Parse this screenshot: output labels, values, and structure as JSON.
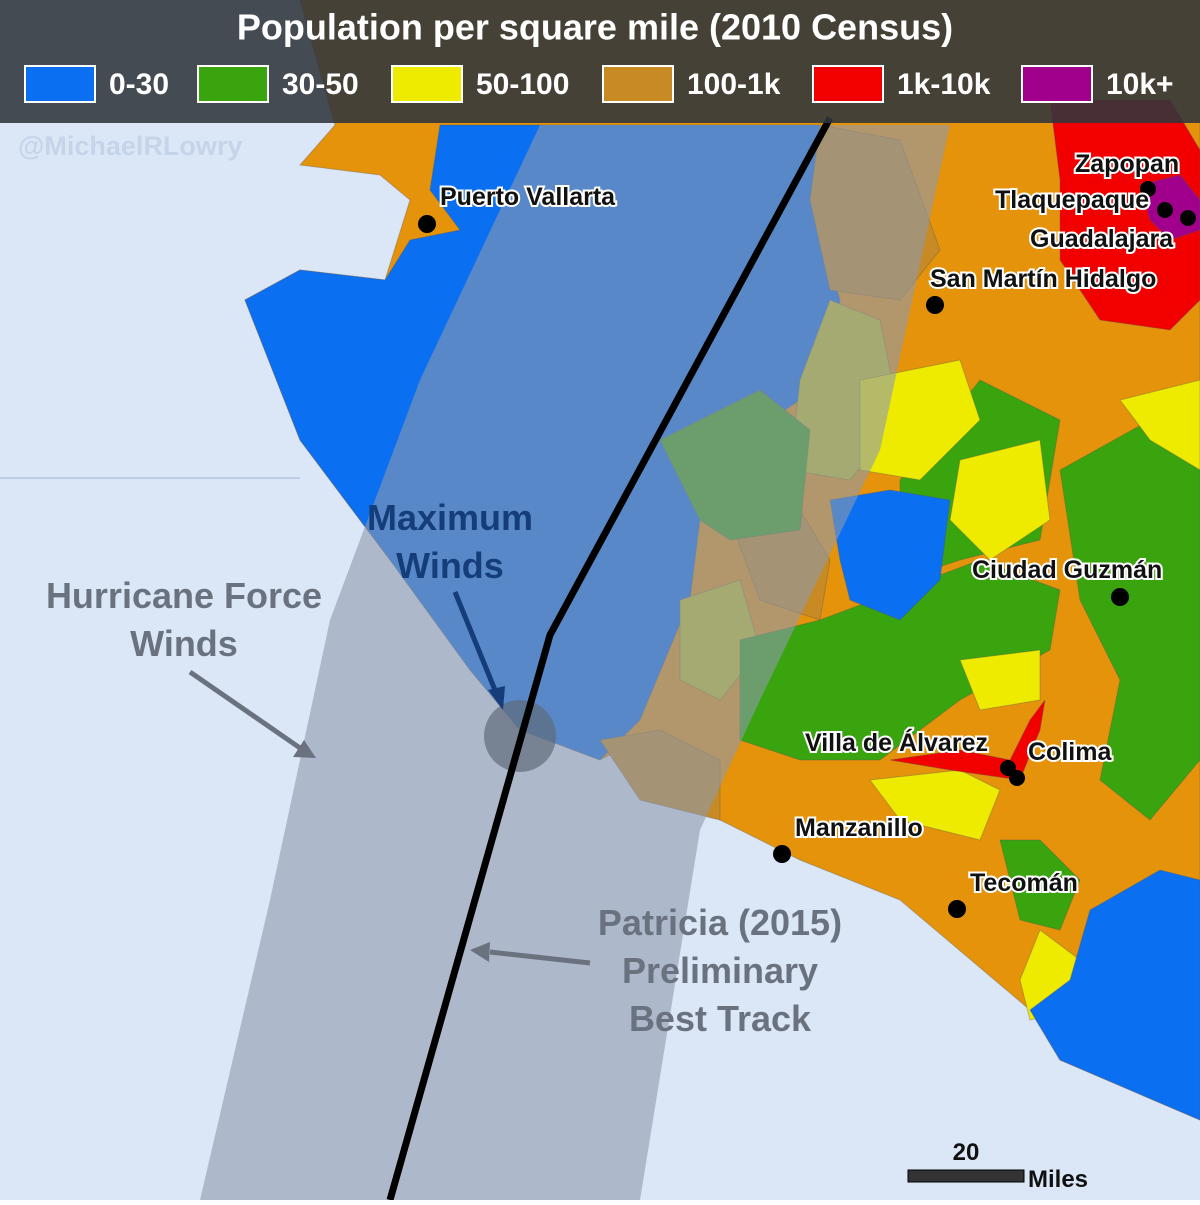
{
  "title": "Population per square mile (2010 Census)",
  "legend": [
    {
      "label": "0-30",
      "color": "#0b6ff2"
    },
    {
      "label": "30-50",
      "color": "#3aa40e"
    },
    {
      "label": "50-100",
      "color": "#eeea00"
    },
    {
      "label": "100-1k",
      "color": "#c88a24"
    },
    {
      "label": "1k-10k",
      "color": "#f20000"
    },
    {
      "label": "10k+",
      "color": "#a0008c"
    }
  ],
  "credit": "@MichaelRLowry",
  "cities": [
    "Puerto Vallarta",
    "Zapopan",
    "Tlaquepaque",
    "Guadalajara",
    "San Martín Hidalgo",
    "Ciudad Guzmán",
    "Villa de Álvarez",
    "Colima",
    "Manzanillo",
    "Tecomán"
  ],
  "annotations": {
    "maximum_winds": [
      "Maximum",
      "Winds"
    ],
    "hurricane_force_winds": [
      "Hurricane Force",
      "Winds"
    ],
    "track": [
      "Patricia (2015)",
      "Preliminary",
      "Best Track"
    ]
  },
  "scale": {
    "value": 20,
    "unit": "Miles"
  }
}
